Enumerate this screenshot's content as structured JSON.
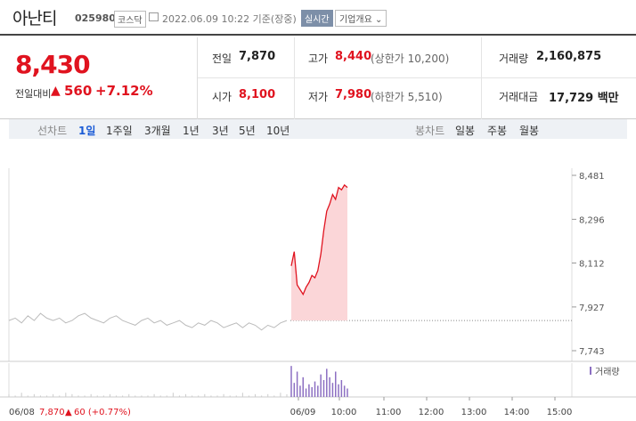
{
  "header": {
    "name": "아난티",
    "code": "025980",
    "market": "코스닥",
    "date": "2022.06.09 10:22 기준(장중)",
    "realtime": "실시간",
    "company": "기업개요 ⌄"
  },
  "price": {
    "current": "8,430",
    "cmp_label": "전일대비",
    "arrow": "▲",
    "change": "560",
    "rate": "+7.12%"
  },
  "info": {
    "prev_label": "전일",
    "prev_val": "7,870",
    "high_label": "고가",
    "high_val": "8,440",
    "upper_limit": "(상한가 10,200)",
    "volume_label": "거래량",
    "volume_val": "2,160,875",
    "open_label": "시가",
    "open_val": "8,100",
    "low_label": "저가",
    "low_val": "7,980",
    "lower_limit": "(하한가 5,510)",
    "amount_label": "거래대금",
    "amount_val": "17,729 백만"
  },
  "period": {
    "line_label": "선차트",
    "tabs": [
      "1일",
      "1주일",
      "3개월",
      "1년",
      "3년",
      "5년",
      "10년"
    ],
    "active": "1일",
    "candle_label": "봉차트",
    "candles": [
      "일봉",
      "주봉",
      "월봉"
    ]
  },
  "chart_data": {
    "type": "line",
    "y_ticks": [
      "8,481",
      "8,296",
      "8,112",
      "7,927",
      "7,743"
    ],
    "ylim": [
      7743,
      8481
    ],
    "prev_close": 7870,
    "x_ticks": [
      "06/08",
      "06/09",
      "10:00",
      "11:00",
      "12:00",
      "13:00",
      "14:00",
      "15:00"
    ],
    "footer_prev": "06/08",
    "footer_val": "7,870",
    "footer_arrow": "▲",
    "footer_change": "60 (+0.77%)",
    "volume_label": "거래량",
    "prev_day": [
      7870,
      7880,
      7860,
      7890,
      7870,
      7900,
      7880,
      7870,
      7880,
      7860,
      7870,
      7890,
      7900,
      7880,
      7870,
      7860,
      7880,
      7890,
      7870,
      7860,
      7850,
      7870,
      7880,
      7860,
      7870,
      7850,
      7860,
      7870,
      7850,
      7840,
      7860,
      7850,
      7870,
      7860,
      7840,
      7850,
      7860,
      7840,
      7860,
      7850,
      7830,
      7850,
      7840,
      7860,
      7870
    ],
    "today": [
      8100,
      8160,
      8020,
      8000,
      7980,
      8010,
      8030,
      8060,
      8050,
      8080,
      8150,
      8250,
      8330,
      8360,
      8400,
      8380,
      8430,
      8420,
      8440,
      8430
    ],
    "volumes_prev": [
      2,
      1,
      3,
      1,
      2,
      1,
      1,
      2,
      1,
      3,
      2,
      1,
      1,
      2,
      1,
      1,
      2,
      1,
      1,
      2,
      1,
      1,
      1,
      2,
      1,
      1,
      3,
      1,
      2,
      1,
      1,
      2,
      1,
      1,
      2,
      1,
      1,
      3,
      1,
      2,
      1,
      2,
      1,
      3,
      2
    ],
    "volumes_today": [
      22,
      10,
      18,
      8,
      14,
      6,
      9,
      7,
      11,
      8,
      16,
      12,
      20,
      14,
      10,
      18,
      9,
      12,
      8,
      6
    ]
  }
}
